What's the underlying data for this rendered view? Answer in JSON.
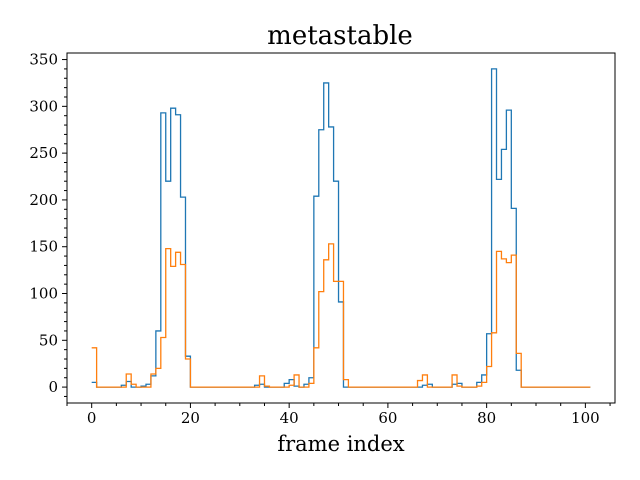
{
  "chart_data": {
    "type": "line",
    "drawstyle": "steps-post",
    "title": "metastable",
    "xlabel": "frame index",
    "ylabel": "",
    "xlim": [
      -5,
      106
    ],
    "ylim": [
      -17,
      357
    ],
    "xticks": [
      0,
      20,
      40,
      60,
      80,
      100
    ],
    "yticks": [
      0,
      50,
      100,
      150,
      200,
      250,
      300,
      350
    ],
    "x_minor_step": 5,
    "y_minor_step": 10,
    "grid": false,
    "legend": "none",
    "x": [
      0,
      1,
      2,
      3,
      4,
      5,
      6,
      7,
      8,
      9,
      10,
      11,
      12,
      13,
      14,
      15,
      16,
      17,
      18,
      19,
      20,
      21,
      22,
      23,
      24,
      25,
      26,
      27,
      28,
      29,
      30,
      31,
      32,
      33,
      34,
      35,
      36,
      37,
      38,
      39,
      40,
      41,
      42,
      43,
      44,
      45,
      46,
      47,
      48,
      49,
      50,
      51,
      52,
      53,
      54,
      55,
      56,
      57,
      58,
      59,
      60,
      61,
      62,
      63,
      64,
      65,
      66,
      67,
      68,
      69,
      70,
      71,
      72,
      73,
      74,
      75,
      76,
      77,
      78,
      79,
      80,
      81,
      82,
      83,
      84,
      85,
      86,
      87,
      88,
      89,
      90,
      91,
      92,
      93,
      94,
      95,
      96,
      97,
      98,
      99,
      100,
      101
    ],
    "series": [
      {
        "color": "#1f77b4",
        "values": [
          5,
          0,
          0,
          0,
          0,
          0,
          2,
          6,
          0,
          0,
          1,
          3,
          12,
          60,
          293,
          220,
          298,
          291,
          203,
          33,
          0,
          0,
          0,
          0,
          0,
          0,
          0,
          0,
          0,
          0,
          0,
          0,
          0,
          2,
          3,
          0,
          0,
          0,
          0,
          4,
          8,
          1,
          0,
          3,
          10,
          204,
          275,
          325,
          278,
          220,
          91,
          0,
          0,
          0,
          0,
          0,
          0,
          0,
          0,
          0,
          0,
          0,
          0,
          0,
          0,
          0,
          0,
          2,
          3,
          0,
          0,
          0,
          0,
          3,
          4,
          0,
          0,
          0,
          5,
          13,
          57,
          340,
          222,
          254,
          296,
          191,
          18,
          0,
          0,
          0,
          0,
          0,
          0,
          0,
          0,
          0,
          0,
          0,
          0,
          0,
          0,
          0
        ]
      },
      {
        "color": "#ff7f0e",
        "values": [
          42,
          0,
          0,
          0,
          0,
          0,
          0,
          14,
          3,
          0,
          0,
          0,
          14,
          20,
          53,
          148,
          129,
          144,
          131,
          30,
          0,
          0,
          0,
          0,
          0,
          0,
          0,
          0,
          0,
          0,
          0,
          0,
          0,
          0,
          12,
          1,
          0,
          0,
          0,
          0,
          2,
          13,
          0,
          0,
          4,
          42,
          102,
          136,
          153,
          113,
          113,
          8,
          0,
          0,
          0,
          0,
          0,
          0,
          0,
          0,
          0,
          0,
          0,
          0,
          0,
          0,
          7,
          13,
          0,
          0,
          0,
          0,
          0,
          13,
          1,
          0,
          0,
          0,
          1,
          5,
          22,
          58,
          145,
          137,
          133,
          141,
          36,
          0,
          0,
          0,
          0,
          0,
          0,
          0,
          0,
          0,
          0,
          0,
          0,
          0,
          0,
          0
        ]
      }
    ]
  }
}
